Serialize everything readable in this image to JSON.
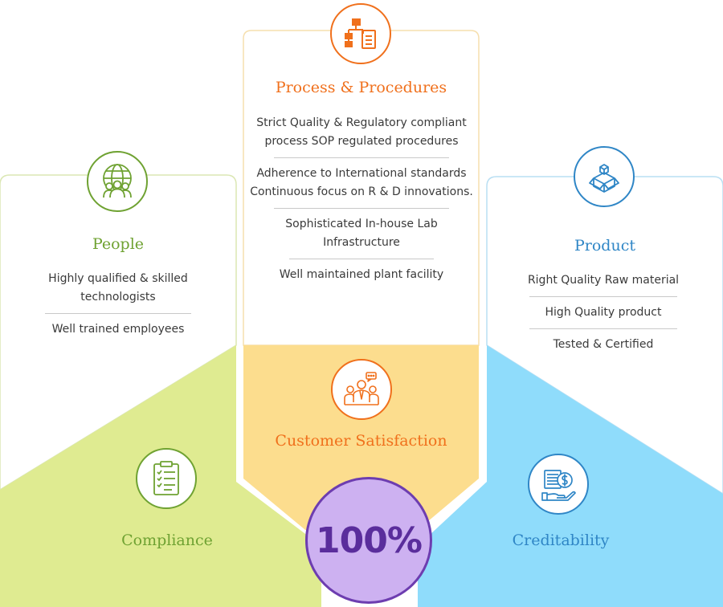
{
  "colors": {
    "people": "#6fa232",
    "process": "#f0701c",
    "product": "#2f86c6",
    "compliance_bg": "#dfeb91",
    "satisfaction_bg": "#fcdd8e",
    "creditability_bg": "#8fdcfb",
    "center_circle": "#cdb1f1"
  },
  "process": {
    "icon": "flowchart-clipboard-icon",
    "title": "Process & Procedures",
    "items": [
      "Strict Quality & Regulatory compliant process SOP regulated procedures",
      "Adherence to International standards Continuous focus on R & D innovations.",
      "Sophisticated In-house Lab Infrastructure",
      "Well maintained plant facility"
    ]
  },
  "people": {
    "icon": "globe-people-icon",
    "title": "People",
    "items": [
      "Highly qualified & skilled technologists",
      "Well trained employees"
    ]
  },
  "product": {
    "icon": "box-cubes-icon",
    "title": "Product",
    "items": [
      "Right Quality Raw material",
      "High Quality product",
      "Tested & Certified"
    ]
  },
  "satisfaction": {
    "icon": "customers-chat-icon",
    "label": "Customer Satisfaction"
  },
  "compliance": {
    "icon": "checklist-clipboard-icon",
    "label": "Compliance"
  },
  "creditability": {
    "icon": "hand-money-icon",
    "label": "Creditability"
  },
  "center": {
    "value": "100%"
  }
}
